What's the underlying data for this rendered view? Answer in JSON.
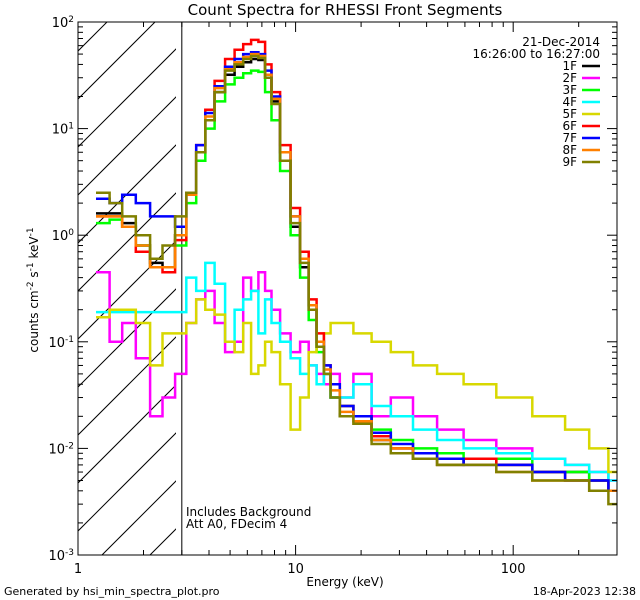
{
  "chart_data": {
    "type": "line",
    "title": "Count Spectra for RHESSI Front Segments",
    "xlabel": "Energy (keV)",
    "ylabel": "counts cm-2 s-1 keV-1",
    "xscale": "log",
    "yscale": "log",
    "xlim": [
      1,
      300
    ],
    "ylim": [
      0.001,
      100
    ],
    "x_tick_labels": [
      {
        "value": 1,
        "label": "1"
      },
      {
        "value": 10,
        "label": "10"
      },
      {
        "value": 100,
        "label": "100"
      }
    ],
    "y_tick_labels": [
      {
        "value": 100,
        "mantissa": "10",
        "exponent": "2"
      },
      {
        "value": 10,
        "mantissa": "10",
        "exponent": "1"
      },
      {
        "value": 1,
        "mantissa": "10",
        "exponent": "0"
      },
      {
        "value": 0.1,
        "mantissa": "10",
        "exponent": "-1"
      },
      {
        "value": 0.01,
        "mantissa": "10",
        "exponent": "-2"
      },
      {
        "value": 0.001,
        "mantissa": "10",
        "exponent": "-3"
      }
    ],
    "excluded_region": {
      "from_kev": 1,
      "to_kev": 3
    },
    "legend_header": [
      "21-Dec-2014",
      "16:26:00 to 16:27:00"
    ],
    "annotations": [
      "Includes Background",
      "Att A0, FDecim 4"
    ],
    "energy_kev": [
      1.3,
      1.5,
      1.7,
      2.0,
      2.3,
      2.6,
      3.0,
      3.3,
      3.7,
      4.0,
      4.5,
      5.0,
      5.5,
      6.0,
      6.5,
      7.0,
      7.5,
      8.0,
      9.0,
      10.0,
      11.0,
      12.0,
      13.0,
      14.0,
      15.0,
      17.0,
      20.0,
      25.0,
      30.0,
      40.0,
      50.0,
      70.0,
      100.0,
      150.0,
      200.0,
      250.0,
      300.0
    ],
    "series": [
      {
        "name": "1F",
        "color": "#000000",
        "values": [
          1.6,
          1.6,
          1.3,
          0.8,
          0.55,
          0.5,
          1.0,
          2.5,
          6,
          12,
          22,
          32,
          38,
          42,
          45,
          44,
          30,
          18,
          5,
          1.2,
          0.5,
          0.2,
          0.09,
          0.05,
          0.03,
          0.02,
          0.02,
          0.012,
          0.01,
          0.008,
          0.007,
          0.008,
          0.007,
          0.006,
          0.006,
          0.005,
          0.004
        ]
      },
      {
        "name": "2F",
        "color": "#ff00ff",
        "values": [
          0.45,
          0.1,
          0.15,
          0.07,
          0.02,
          0.03,
          0.05,
          0.15,
          0.25,
          0.3,
          0.15,
          0.08,
          0.1,
          0.4,
          0.3,
          0.45,
          0.3,
          0.2,
          0.12,
          0.08,
          0.1,
          0.06,
          0.05,
          0.04,
          0.05,
          0.03,
          0.05,
          0.02,
          0.03,
          0.02,
          0.015,
          0.012,
          0.01,
          0.008,
          0.007,
          0.006,
          0.005
        ]
      },
      {
        "name": "3F",
        "color": "#00ff00",
        "values": [
          1.3,
          1.4,
          1.2,
          0.8,
          0.5,
          0.5,
          0.8,
          2.0,
          5,
          10,
          18,
          26,
          30,
          33,
          35,
          34,
          22,
          12,
          4,
          1.0,
          0.4,
          0.16,
          0.08,
          0.05,
          0.03,
          0.025,
          0.02,
          0.015,
          0.012,
          0.01,
          0.009,
          0.008,
          0.008,
          0.006,
          0.006,
          0.005,
          0.004
        ]
      },
      {
        "name": "4F",
        "color": "#00ffff",
        "values": [
          0.19,
          0.19,
          0.19,
          0.19,
          0.19,
          0.19,
          0.19,
          0.4,
          0.3,
          0.55,
          0.35,
          0.1,
          0.2,
          0.25,
          0.3,
          0.12,
          0.25,
          0.15,
          0.1,
          0.07,
          0.05,
          0.06,
          0.04,
          0.05,
          0.03,
          0.03,
          0.04,
          0.025,
          0.02,
          0.015,
          0.012,
          0.01,
          0.009,
          0.008,
          0.007,
          0.006,
          0.005
        ]
      },
      {
        "name": "5F",
        "color": "#d8d800",
        "values": [
          0.17,
          0.2,
          0.2,
          0.15,
          0.06,
          0.12,
          0.12,
          0.15,
          0.25,
          0.2,
          0.18,
          0.1,
          0.08,
          0.15,
          0.05,
          0.06,
          0.1,
          0.08,
          0.04,
          0.015,
          0.03,
          0.08,
          0.1,
          0.12,
          0.15,
          0.15,
          0.12,
          0.1,
          0.08,
          0.06,
          0.05,
          0.04,
          0.03,
          0.02,
          0.015,
          0.01,
          0.006
        ]
      },
      {
        "name": "6F",
        "color": "#ff0000",
        "values": [
          1.5,
          1.5,
          1.2,
          0.7,
          0.5,
          0.45,
          0.9,
          2.5,
          7,
          15,
          28,
          45,
          55,
          62,
          68,
          65,
          40,
          22,
          7,
          1.8,
          0.7,
          0.25,
          0.12,
          0.06,
          0.04,
          0.025,
          0.02,
          0.013,
          0.01,
          0.009,
          0.008,
          0.008,
          0.007,
          0.006,
          0.005,
          0.005,
          0.004
        ]
      },
      {
        "name": "7F",
        "color": "#0000ff",
        "values": [
          2.2,
          2.0,
          2.4,
          2.0,
          1.5,
          1.5,
          1.2,
          2.5,
          7,
          14,
          25,
          38,
          45,
          50,
          52,
          50,
          35,
          20,
          6,
          1.5,
          0.6,
          0.22,
          0.1,
          0.06,
          0.04,
          0.025,
          0.02,
          0.014,
          0.011,
          0.009,
          0.008,
          0.007,
          0.007,
          0.006,
          0.005,
          0.005,
          0.004
        ]
      },
      {
        "name": "8F",
        "color": "#ff8000",
        "values": [
          1.5,
          1.5,
          1.2,
          0.8,
          0.5,
          0.5,
          1.0,
          2.4,
          6,
          13,
          24,
          36,
          42,
          47,
          50,
          48,
          32,
          19,
          6,
          1.5,
          0.6,
          0.22,
          0.1,
          0.055,
          0.035,
          0.022,
          0.018,
          0.012,
          0.01,
          0.008,
          0.007,
          0.007,
          0.006,
          0.005,
          0.005,
          0.004,
          0.004
        ]
      },
      {
        "name": "9F",
        "color": "#808000",
        "values": [
          2.5,
          2.0,
          1.5,
          1.0,
          0.6,
          0.8,
          1.5,
          2.5,
          6,
          12,
          22,
          35,
          40,
          45,
          48,
          46,
          30,
          17,
          5,
          1.3,
          0.55,
          0.2,
          0.09,
          0.05,
          0.03,
          0.02,
          0.017,
          0.011,
          0.009,
          0.008,
          0.007,
          0.007,
          0.006,
          0.005,
          0.005,
          0.004,
          0.003
        ]
      }
    ]
  },
  "footer": {
    "generated_by": "Generated by hsi_min_spectra_plot.pro",
    "timestamp": "18-Apr-2023 12:38"
  }
}
